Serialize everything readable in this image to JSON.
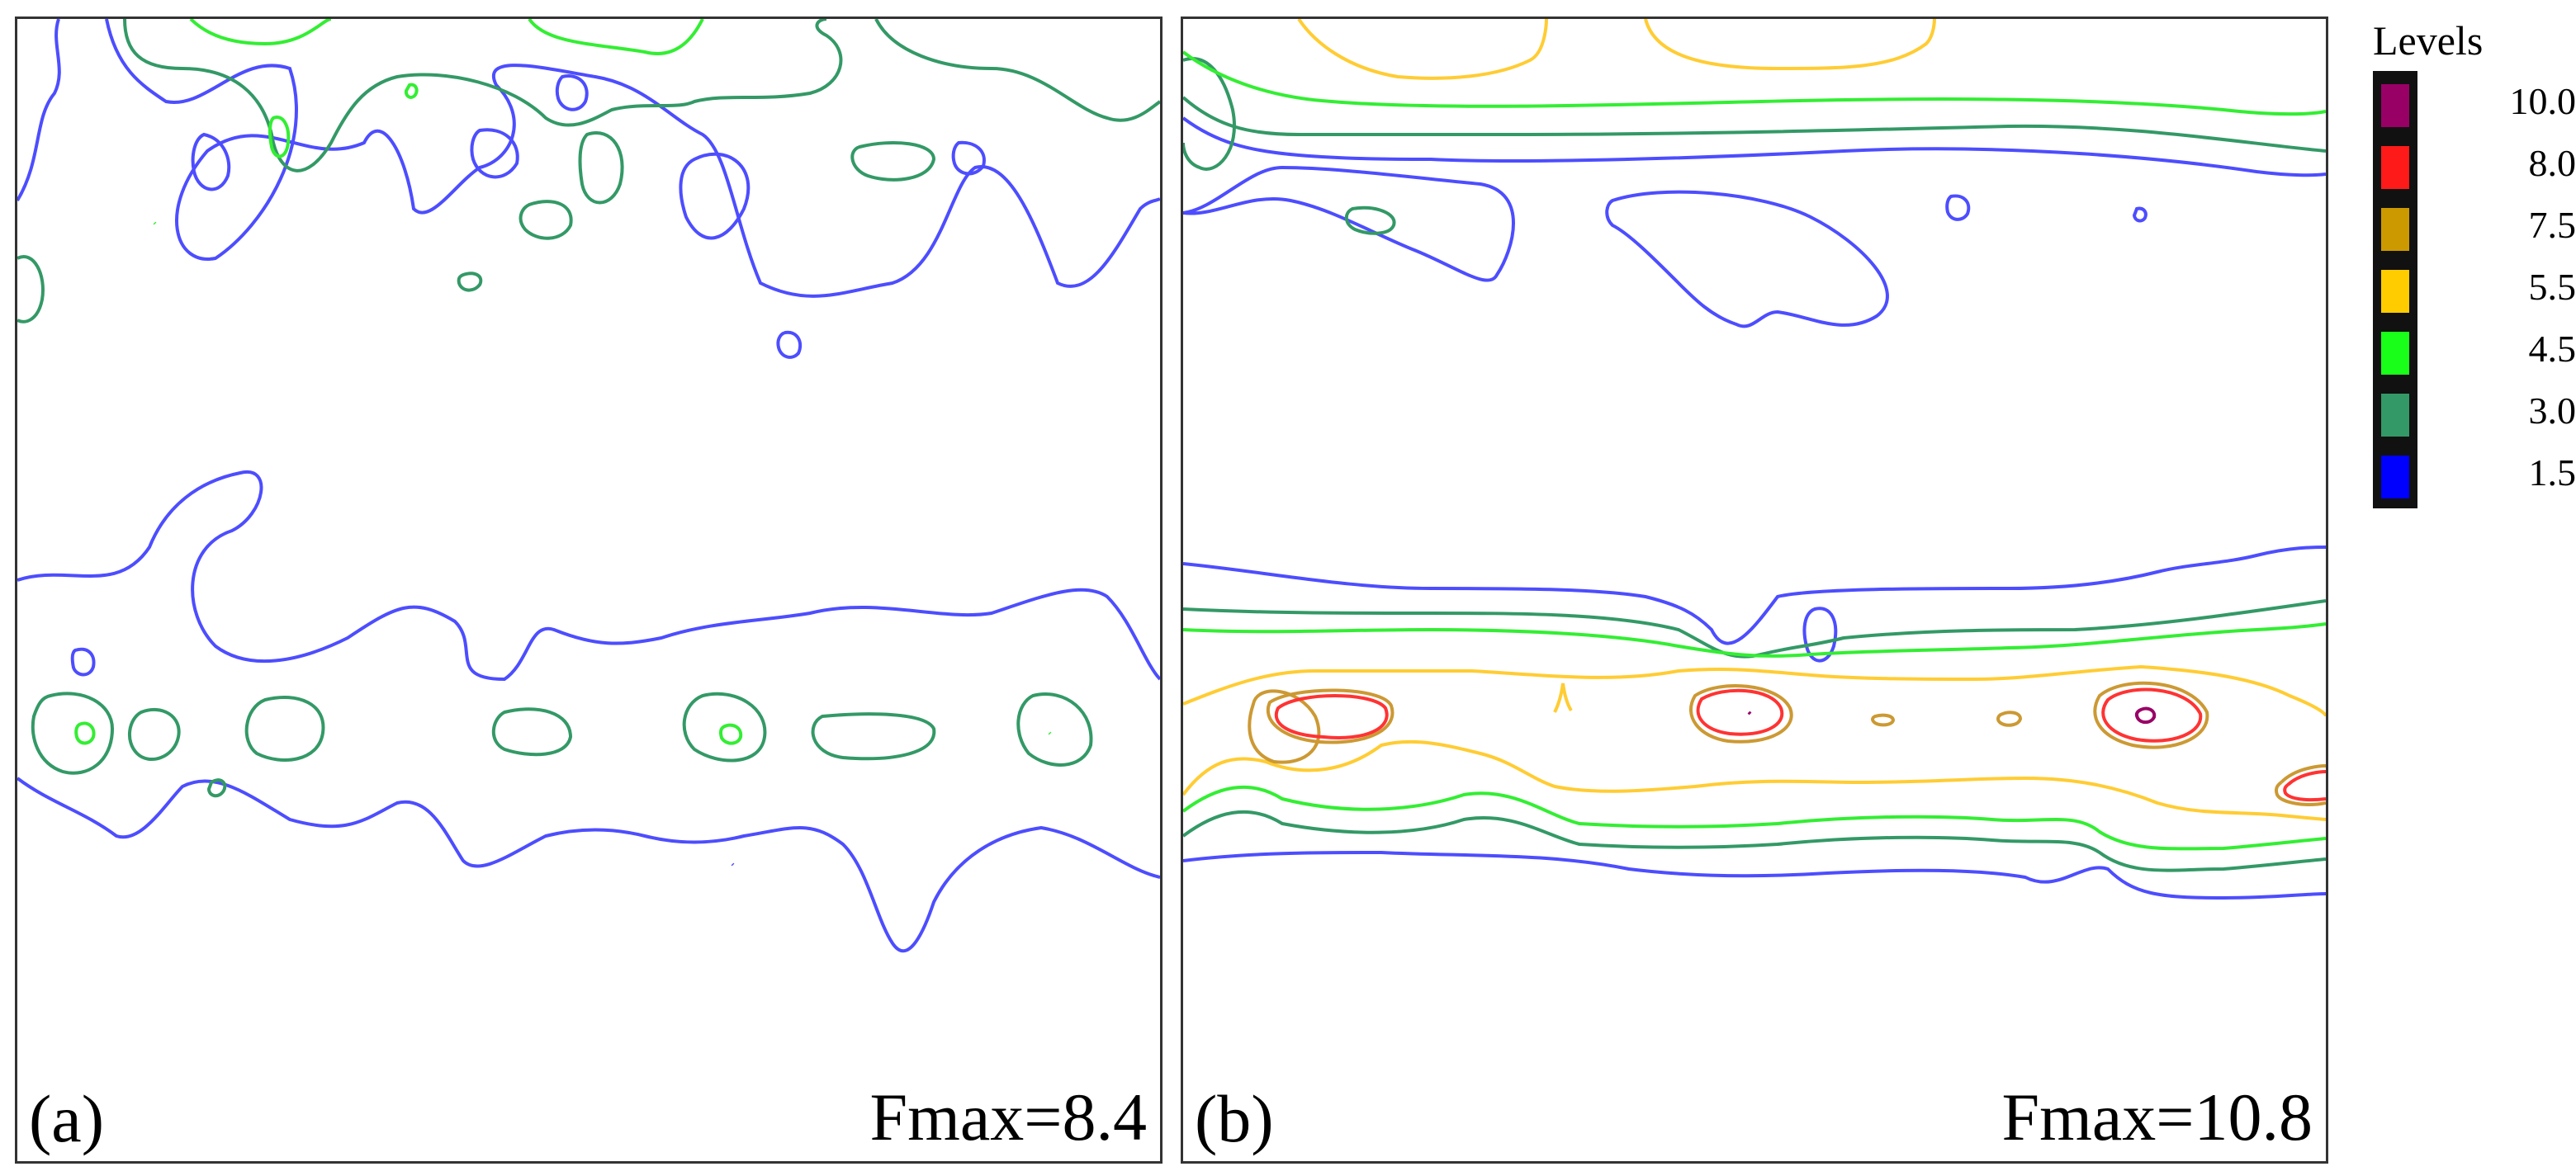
{
  "legend": {
    "title": "Levels",
    "items": [
      {
        "value": "10.0",
        "color": "#990066"
      },
      {
        "value": "8.0",
        "color": "#ff1a1a"
      },
      {
        "value": "7.5",
        "color": "#cc9900"
      },
      {
        "value": "5.5",
        "color": "#ffcc00"
      },
      {
        "value": "4.5",
        "color": "#1aff1a"
      },
      {
        "value": "3.0",
        "color": "#339966"
      },
      {
        "value": "1.5",
        "color": "#0000ff"
      }
    ]
  },
  "panels": [
    {
      "tag": "(a)",
      "fmax_label": "Fmax=8.4"
    },
    {
      "tag": "(b)",
      "fmax_label": "Fmax=10.8"
    }
  ],
  "contour_colors": {
    "1.5": "#4d4dff",
    "3.0": "#339966",
    "4.5": "#33ee33",
    "5.5": "#ffcc33",
    "7.5": "#cc9933",
    "8.0": "#ff3333",
    "10.0": "#990066"
  }
}
